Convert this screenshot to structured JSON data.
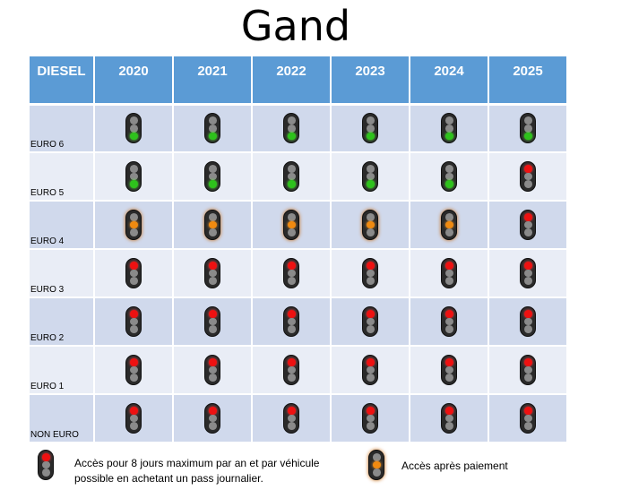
{
  "title": "Gand",
  "table": {
    "corner": "DIESEL",
    "years": [
      "2020",
      "2021",
      "2022",
      "2023",
      "2024",
      "2025"
    ],
    "rows": [
      {
        "label": "EURO 6",
        "lights": [
          "green",
          "green",
          "green",
          "green",
          "green",
          "green"
        ]
      },
      {
        "label": "EURO 5",
        "lights": [
          "green",
          "green",
          "green",
          "green",
          "green",
          "red"
        ]
      },
      {
        "label": "EURO 4",
        "lights": [
          "orange",
          "orange",
          "orange",
          "orange",
          "orange",
          "red"
        ]
      },
      {
        "label": "EURO 3",
        "lights": [
          "red",
          "red",
          "red",
          "red",
          "red",
          "red"
        ]
      },
      {
        "label": "EURO 2",
        "lights": [
          "red",
          "red",
          "red",
          "red",
          "red",
          "red"
        ]
      },
      {
        "label": "EURO 1",
        "lights": [
          "red",
          "red",
          "red",
          "red",
          "red",
          "red"
        ]
      },
      {
        "label": "NON  EURO",
        "lights": [
          "red",
          "red",
          "red",
          "red",
          "red",
          "red"
        ]
      }
    ]
  },
  "legend": {
    "red_text_line1": "Accès pour 8 jours maximum par an et par véhicule",
    "red_text_line2": "possible en achetant un pass journalier.",
    "orange_text": "Accès après paiement"
  },
  "colors": {
    "header": "#5b9bd5",
    "row_odd": "#d0d9ec",
    "row_even": "#e9edf6",
    "green": "#2ec21c",
    "red": "#ee1111",
    "orange": "#f08a10"
  }
}
